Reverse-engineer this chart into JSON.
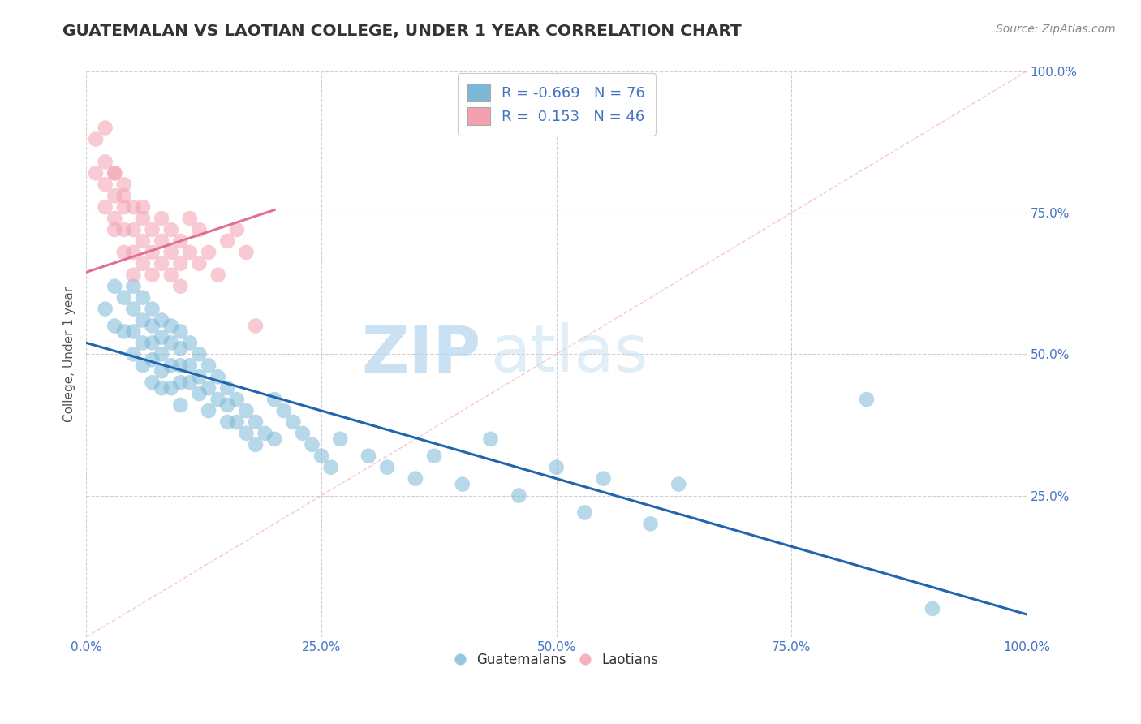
{
  "title": "GUATEMALAN VS LAOTIAN COLLEGE, UNDER 1 YEAR CORRELATION CHART",
  "source": "Source: ZipAtlas.com",
  "ylabel": "College, Under 1 year",
  "xlim": [
    0.0,
    1.0
  ],
  "ylim": [
    0.0,
    1.0
  ],
  "xticks": [
    0.0,
    0.25,
    0.5,
    0.75,
    1.0
  ],
  "xtick_labels": [
    "0.0%",
    "25.0%",
    "50.0%",
    "75.0%",
    "100.0%"
  ],
  "yticks_left": [
    0.0,
    0.25,
    0.5,
    0.75,
    1.0
  ],
  "ytick_labels_left": [
    "",
    "",
    "",
    "",
    ""
  ],
  "yticks_right": [
    0.25,
    0.5,
    0.75,
    1.0
  ],
  "ytick_labels_right": [
    "25.0%",
    "50.0%",
    "75.0%",
    "100.0%"
  ],
  "guatemalan_color": "#7db8d8",
  "laotian_color": "#f4a0b0",
  "guatemalan_line_color": "#2166ac",
  "laotian_line_color": "#e07090",
  "diagonal_color": "#f4a0b0",
  "watermark_zip": "ZIP",
  "watermark_atlas": "atlas",
  "legend_R_guatemalan": "-0.669",
  "legend_N_guatemalan": "76",
  "legend_R_laotian": "0.153",
  "legend_N_laotian": "46",
  "guatemalan_x": [
    0.02,
    0.03,
    0.03,
    0.04,
    0.04,
    0.05,
    0.05,
    0.05,
    0.05,
    0.06,
    0.06,
    0.06,
    0.06,
    0.07,
    0.07,
    0.07,
    0.07,
    0.07,
    0.08,
    0.08,
    0.08,
    0.08,
    0.08,
    0.09,
    0.09,
    0.09,
    0.09,
    0.1,
    0.1,
    0.1,
    0.1,
    0.1,
    0.11,
    0.11,
    0.11,
    0.12,
    0.12,
    0.12,
    0.13,
    0.13,
    0.13,
    0.14,
    0.14,
    0.15,
    0.15,
    0.15,
    0.16,
    0.16,
    0.17,
    0.17,
    0.18,
    0.18,
    0.19,
    0.2,
    0.2,
    0.21,
    0.22,
    0.23,
    0.24,
    0.25,
    0.26,
    0.27,
    0.3,
    0.32,
    0.35,
    0.37,
    0.4,
    0.43,
    0.46,
    0.5,
    0.53,
    0.55,
    0.6,
    0.63,
    0.83,
    0.9
  ],
  "guatemalan_y": [
    0.58,
    0.62,
    0.55,
    0.6,
    0.54,
    0.62,
    0.58,
    0.54,
    0.5,
    0.6,
    0.56,
    0.52,
    0.48,
    0.58,
    0.55,
    0.52,
    0.49,
    0.45,
    0.56,
    0.53,
    0.5,
    0.47,
    0.44,
    0.55,
    0.52,
    0.48,
    0.44,
    0.54,
    0.51,
    0.48,
    0.45,
    0.41,
    0.52,
    0.48,
    0.45,
    0.5,
    0.46,
    0.43,
    0.48,
    0.44,
    0.4,
    0.46,
    0.42,
    0.44,
    0.41,
    0.38,
    0.42,
    0.38,
    0.4,
    0.36,
    0.38,
    0.34,
    0.36,
    0.42,
    0.35,
    0.4,
    0.38,
    0.36,
    0.34,
    0.32,
    0.3,
    0.35,
    0.32,
    0.3,
    0.28,
    0.32,
    0.27,
    0.35,
    0.25,
    0.3,
    0.22,
    0.28,
    0.2,
    0.27,
    0.42,
    0.05
  ],
  "laotian_x": [
    0.01,
    0.01,
    0.02,
    0.02,
    0.02,
    0.02,
    0.03,
    0.03,
    0.03,
    0.03,
    0.03,
    0.04,
    0.04,
    0.04,
    0.04,
    0.04,
    0.05,
    0.05,
    0.05,
    0.05,
    0.06,
    0.06,
    0.06,
    0.06,
    0.07,
    0.07,
    0.07,
    0.08,
    0.08,
    0.08,
    0.09,
    0.09,
    0.09,
    0.1,
    0.1,
    0.1,
    0.11,
    0.11,
    0.12,
    0.12,
    0.13,
    0.14,
    0.15,
    0.16,
    0.17,
    0.18
  ],
  "laotian_y": [
    0.82,
    0.88,
    0.84,
    0.8,
    0.76,
    0.9,
    0.82,
    0.78,
    0.74,
    0.82,
    0.72,
    0.8,
    0.76,
    0.72,
    0.68,
    0.78,
    0.76,
    0.72,
    0.68,
    0.64,
    0.74,
    0.7,
    0.66,
    0.76,
    0.72,
    0.68,
    0.64,
    0.7,
    0.66,
    0.74,
    0.68,
    0.64,
    0.72,
    0.66,
    0.62,
    0.7,
    0.68,
    0.74,
    0.66,
    0.72,
    0.68,
    0.64,
    0.7,
    0.72,
    0.68,
    0.55
  ],
  "background_color": "#ffffff",
  "grid_color": "#d0d0d0",
  "title_color": "#333333",
  "axis_label_color": "#555555",
  "tick_label_color": "#4472c4",
  "legend_text_color": "#4472c4"
}
